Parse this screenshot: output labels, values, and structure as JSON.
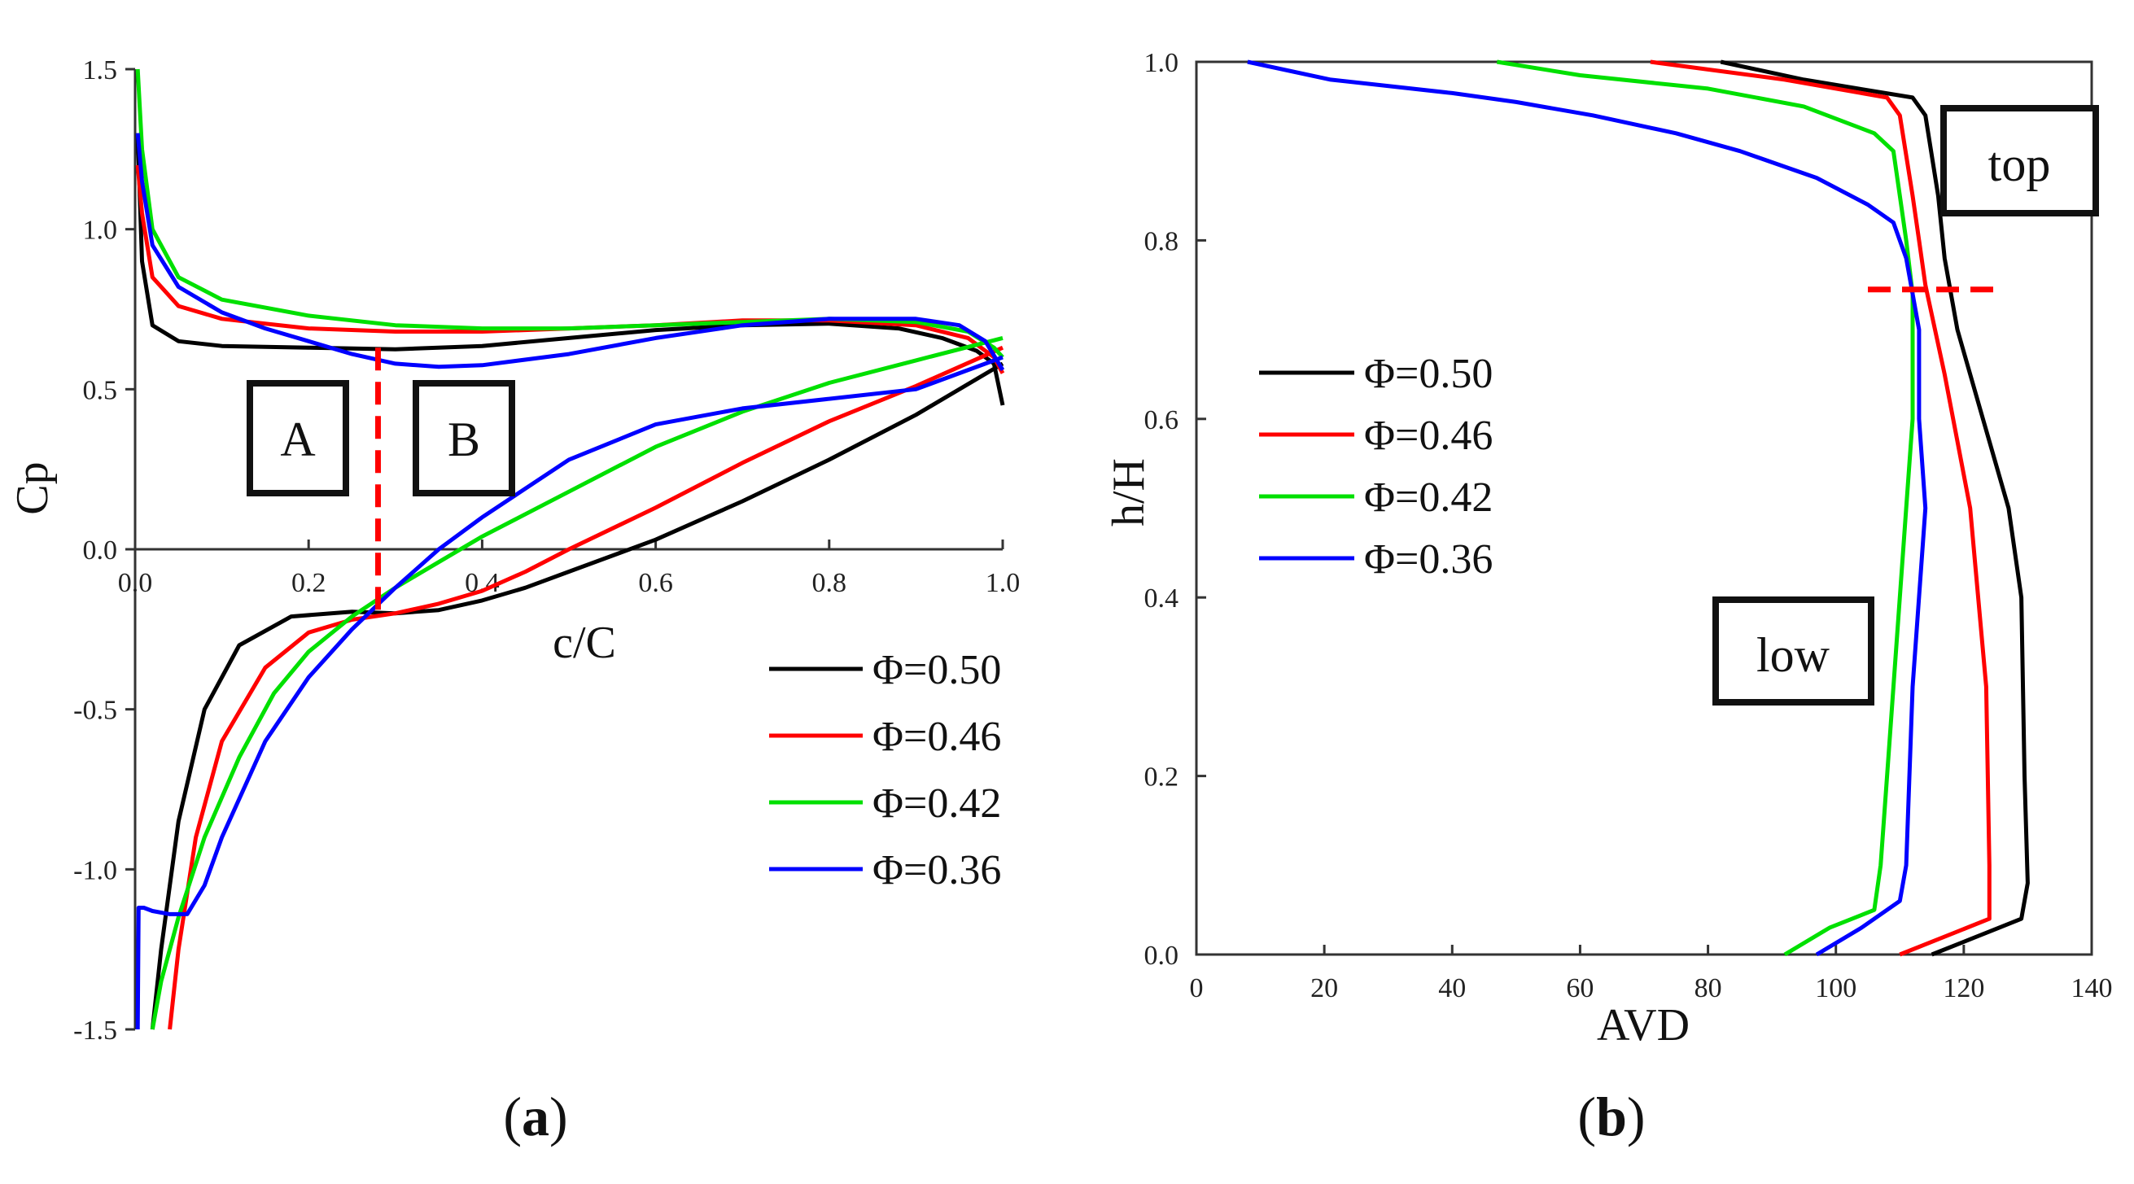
{
  "chart_data": [
    {
      "type": "line",
      "panel_label": "a",
      "xlabel": "c/C",
      "ylabel": "Cp",
      "xlim": [
        0,
        1.0
      ],
      "ylim": [
        -1.5,
        1.5
      ],
      "xticks": [
        "0.0",
        "0.2",
        "0.4",
        "0.6",
        "0.8",
        "1.0"
      ],
      "yticks": [
        "-1.5",
        "-1.0",
        "-0.5",
        "0.0",
        "0.5",
        "1.0",
        "1.5"
      ],
      "legend": [
        "Φ=0.50",
        "Φ=0.46",
        "Φ=0.42",
        "Φ=0.36"
      ],
      "legend_position": "center-right",
      "annotations": [
        "A",
        "B"
      ],
      "divider": {
        "x": 0.28,
        "y_top": 0.63,
        "y_bottom": -0.2
      },
      "series": [
        {
          "name": "Φ=0.50",
          "color": "#000000",
          "upper": [
            [
              0.003,
              1.3
            ],
            [
              0.008,
              0.9
            ],
            [
              0.02,
              0.7
            ],
            [
              0.05,
              0.65
            ],
            [
              0.1,
              0.635
            ],
            [
              0.2,
              0.63
            ],
            [
              0.3,
              0.625
            ],
            [
              0.4,
              0.635
            ],
            [
              0.5,
              0.66
            ],
            [
              0.6,
              0.685
            ],
            [
              0.7,
              0.7
            ],
            [
              0.8,
              0.705
            ],
            [
              0.88,
              0.69
            ],
            [
              0.93,
              0.66
            ],
            [
              0.97,
              0.62
            ],
            [
              0.99,
              0.58
            ],
            [
              1.0,
              0.45
            ]
          ],
          "lower": [
            [
              0.02,
              -1.5
            ],
            [
              0.03,
              -1.25
            ],
            [
              0.05,
              -0.85
            ],
            [
              0.08,
              -0.5
            ],
            [
              0.12,
              -0.3
            ],
            [
              0.18,
              -0.21
            ],
            [
              0.25,
              -0.195
            ],
            [
              0.3,
              -0.2
            ],
            [
              0.35,
              -0.19
            ],
            [
              0.4,
              -0.16
            ],
            [
              0.45,
              -0.12
            ],
            [
              0.5,
              -0.07
            ],
            [
              0.55,
              -0.02
            ],
            [
              0.6,
              0.03
            ],
            [
              0.7,
              0.15
            ],
            [
              0.8,
              0.28
            ],
            [
              0.9,
              0.42
            ],
            [
              1.0,
              0.58
            ]
          ]
        },
        {
          "name": "Φ=0.46",
          "color": "#ff0000",
          "upper": [
            [
              0.003,
              1.2
            ],
            [
              0.008,
              1.05
            ],
            [
              0.02,
              0.85
            ],
            [
              0.05,
              0.76
            ],
            [
              0.1,
              0.72
            ],
            [
              0.2,
              0.69
            ],
            [
              0.3,
              0.68
            ],
            [
              0.4,
              0.68
            ],
            [
              0.5,
              0.69
            ],
            [
              0.6,
              0.7
            ],
            [
              0.7,
              0.715
            ],
            [
              0.8,
              0.715
            ],
            [
              0.9,
              0.7
            ],
            [
              0.96,
              0.66
            ],
            [
              0.99,
              0.6
            ],
            [
              1.0,
              0.55
            ]
          ],
          "lower": [
            [
              0.04,
              -1.5
            ],
            [
              0.05,
              -1.25
            ],
            [
              0.07,
              -0.9
            ],
            [
              0.1,
              -0.6
            ],
            [
              0.15,
              -0.37
            ],
            [
              0.2,
              -0.26
            ],
            [
              0.25,
              -0.22
            ],
            [
              0.3,
              -0.2
            ],
            [
              0.35,
              -0.17
            ],
            [
              0.4,
              -0.13
            ],
            [
              0.45,
              -0.07
            ],
            [
              0.5,
              0.0
            ],
            [
              0.6,
              0.13
            ],
            [
              0.7,
              0.27
            ],
            [
              0.8,
              0.4
            ],
            [
              0.9,
              0.51
            ],
            [
              1.0,
              0.63
            ]
          ]
        },
        {
          "name": "Φ=0.42",
          "color": "#00e000",
          "upper": [
            [
              0.003,
              1.5
            ],
            [
              0.008,
              1.25
            ],
            [
              0.02,
              1.0
            ],
            [
              0.05,
              0.85
            ],
            [
              0.1,
              0.78
            ],
            [
              0.2,
              0.73
            ],
            [
              0.3,
              0.7
            ],
            [
              0.4,
              0.69
            ],
            [
              0.5,
              0.69
            ],
            [
              0.6,
              0.7
            ],
            [
              0.7,
              0.71
            ],
            [
              0.8,
              0.72
            ],
            [
              0.9,
              0.71
            ],
            [
              0.96,
              0.68
            ],
            [
              0.99,
              0.63
            ],
            [
              1.0,
              0.6
            ]
          ],
          "lower": [
            [
              0.02,
              -1.5
            ],
            [
              0.03,
              -1.35
            ],
            [
              0.05,
              -1.15
            ],
            [
              0.08,
              -0.9
            ],
            [
              0.12,
              -0.65
            ],
            [
              0.16,
              -0.45
            ],
            [
              0.2,
              -0.32
            ],
            [
              0.25,
              -0.21
            ],
            [
              0.3,
              -0.12
            ],
            [
              0.35,
              -0.04
            ],
            [
              0.4,
              0.04
            ],
            [
              0.5,
              0.18
            ],
            [
              0.6,
              0.32
            ],
            [
              0.7,
              0.43
            ],
            [
              0.8,
              0.52
            ],
            [
              0.9,
              0.59
            ],
            [
              1.0,
              0.66
            ]
          ]
        },
        {
          "name": "Φ=0.36",
          "color": "#0000ff",
          "upper": [
            [
              0.003,
              1.3
            ],
            [
              0.008,
              1.15
            ],
            [
              0.02,
              0.95
            ],
            [
              0.05,
              0.82
            ],
            [
              0.1,
              0.74
            ],
            [
              0.15,
              0.69
            ],
            [
              0.2,
              0.65
            ],
            [
              0.25,
              0.61
            ],
            [
              0.3,
              0.58
            ],
            [
              0.35,
              0.57
            ],
            [
              0.4,
              0.575
            ],
            [
              0.5,
              0.61
            ],
            [
              0.6,
              0.66
            ],
            [
              0.7,
              0.7
            ],
            [
              0.8,
              0.72
            ],
            [
              0.9,
              0.72
            ],
            [
              0.95,
              0.7
            ],
            [
              0.98,
              0.65
            ],
            [
              1.0,
              0.56
            ]
          ],
          "lower": [
            [
              0.003,
              -1.5
            ],
            [
              0.004,
              -1.12
            ],
            [
              0.01,
              -1.12
            ],
            [
              0.02,
              -1.13
            ],
            [
              0.04,
              -1.14
            ],
            [
              0.06,
              -1.14
            ],
            [
              0.08,
              -1.05
            ],
            [
              0.1,
              -0.9
            ],
            [
              0.15,
              -0.6
            ],
            [
              0.2,
              -0.4
            ],
            [
              0.25,
              -0.25
            ],
            [
              0.3,
              -0.12
            ],
            [
              0.35,
              0.0
            ],
            [
              0.4,
              0.1
            ],
            [
              0.5,
              0.28
            ],
            [
              0.6,
              0.39
            ],
            [
              0.7,
              0.44
            ],
            [
              0.8,
              0.47
            ],
            [
              0.9,
              0.5
            ],
            [
              1.0,
              0.6
            ]
          ]
        }
      ]
    },
    {
      "type": "line",
      "panel_label": "b",
      "xlabel": "AVD",
      "ylabel": "h/H",
      "xlim": [
        0,
        140
      ],
      "ylim": [
        0,
        1.0
      ],
      "xticks": [
        "0",
        "20",
        "40",
        "60",
        "80",
        "100",
        "120",
        "140"
      ],
      "yticks": [
        "0.0",
        "0.2",
        "0.4",
        "0.6",
        "0.8",
        "1.0"
      ],
      "legend": [
        "Φ=0.50",
        "Φ=0.46",
        "Φ=0.42",
        "Φ=0.36"
      ],
      "legend_position": "center-left",
      "annotations": [
        "top",
        "low"
      ],
      "divider": {
        "y": 0.745,
        "x_start": 105,
        "x_end": 126
      },
      "series": [
        {
          "name": "Φ=0.50",
          "color": "#000000",
          "points": [
            [
              115,
              0.0
            ],
            [
              122,
              0.02
            ],
            [
              129,
              0.04
            ],
            [
              130,
              0.08
            ],
            [
              129.5,
              0.2
            ],
            [
              129,
              0.4
            ],
            [
              127,
              0.5
            ],
            [
              123,
              0.6
            ],
            [
              119,
              0.7
            ],
            [
              117,
              0.78
            ],
            [
              116,
              0.85
            ],
            [
              114,
              0.94
            ],
            [
              112,
              0.96
            ],
            [
              95,
              0.98
            ],
            [
              82,
              1.0
            ]
          ]
        },
        {
          "name": "Φ=0.46",
          "color": "#ff0000",
          "points": [
            [
              110,
              0.0
            ],
            [
              117,
              0.02
            ],
            [
              124,
              0.04
            ],
            [
              124,
              0.1
            ],
            [
              123.5,
              0.3
            ],
            [
              121,
              0.5
            ],
            [
              117,
              0.65
            ],
            [
              114,
              0.75
            ],
            [
              113,
              0.8
            ],
            [
              112,
              0.85
            ],
            [
              110,
              0.94
            ],
            [
              108,
              0.96
            ],
            [
              92,
              0.98
            ],
            [
              71,
              1.0
            ]
          ]
        },
        {
          "name": "Φ=0.42",
          "color": "#00e000",
          "points": [
            [
              92,
              0.0
            ],
            [
              99,
              0.03
            ],
            [
              106,
              0.05
            ],
            [
              107,
              0.1
            ],
            [
              108,
              0.2
            ],
            [
              111,
              0.5
            ],
            [
              112,
              0.6
            ],
            [
              112,
              0.74
            ],
            [
              111,
              0.8
            ],
            [
              110,
              0.85
            ],
            [
              109,
              0.9
            ],
            [
              106,
              0.92
            ],
            [
              95,
              0.95
            ],
            [
              80,
              0.97
            ],
            [
              60,
              0.985
            ],
            [
              47,
              1.0
            ]
          ]
        },
        {
          "name": "Φ=0.36",
          "color": "#0000ff",
          "points": [
            [
              97,
              0.0
            ],
            [
              104,
              0.03
            ],
            [
              110,
              0.06
            ],
            [
              111,
              0.1
            ],
            [
              112,
              0.3
            ],
            [
              114,
              0.5
            ],
            [
              113,
              0.6
            ],
            [
              113,
              0.7
            ],
            [
              112,
              0.74
            ],
            [
              111,
              0.78
            ],
            [
              109,
              0.82
            ],
            [
              105,
              0.84
            ],
            [
              97,
              0.87
            ],
            [
              85,
              0.9
            ],
            [
              75,
              0.92
            ],
            [
              62,
              0.94
            ],
            [
              50,
              0.955
            ],
            [
              40,
              0.965
            ],
            [
              21,
              0.98
            ],
            [
              8,
              1.0
            ]
          ]
        }
      ]
    }
  ]
}
